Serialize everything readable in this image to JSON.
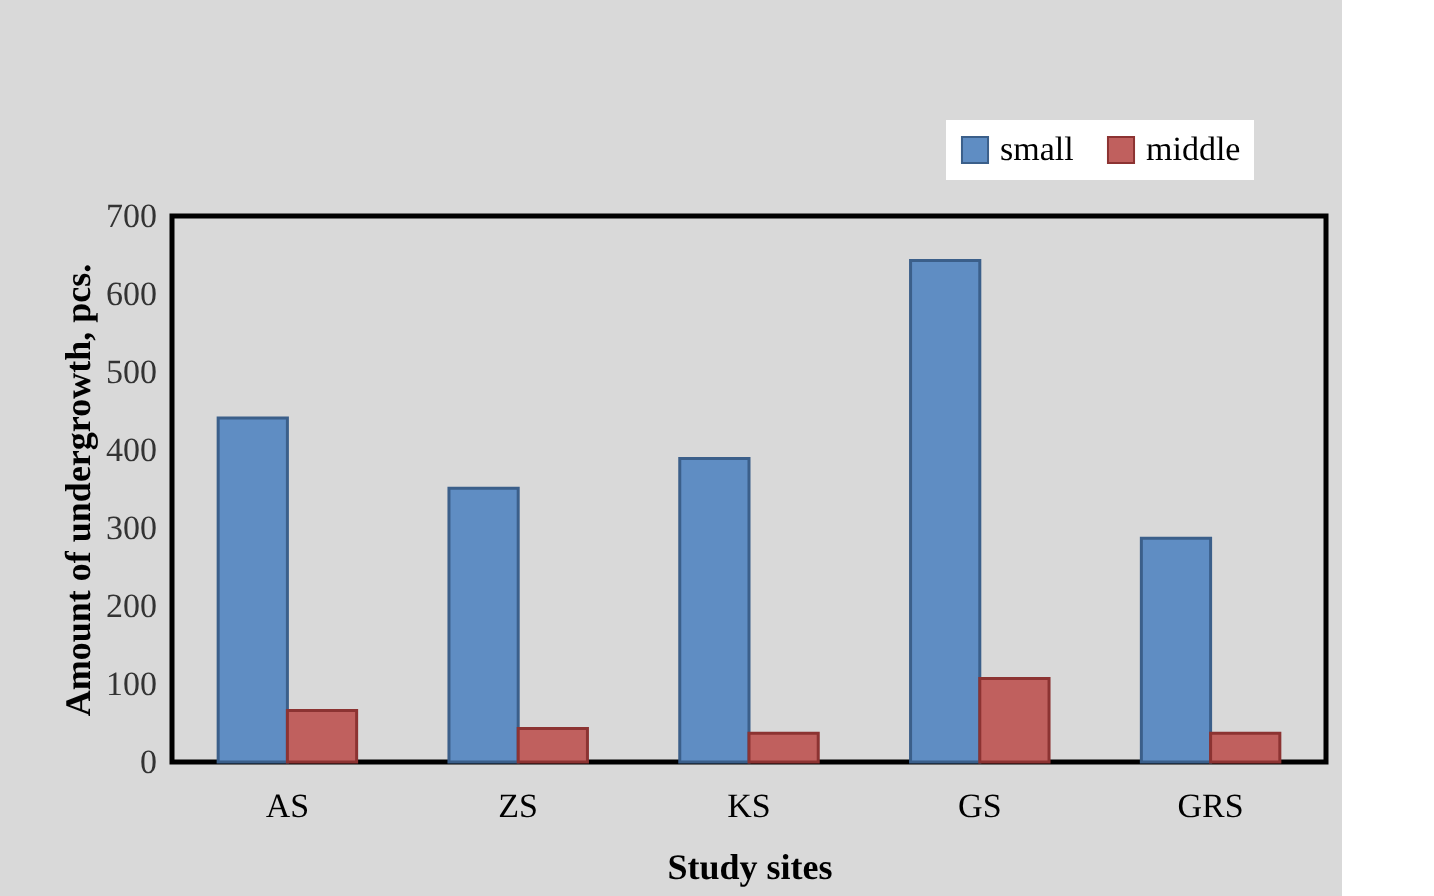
{
  "chart_data": {
    "type": "bar",
    "xlabel": "Study sites",
    "ylabel": "Amount of undergrowth, pcs.",
    "categories": [
      "AS",
      "ZS",
      "KS",
      "GS",
      "GRS"
    ],
    "series": [
      {
        "name": "small",
        "color": "#5f8dc3",
        "values": [
          441,
          351,
          389,
          643,
          287
        ]
      },
      {
        "name": "middle",
        "color": "#c0605e",
        "values": [
          66,
          43,
          37,
          107,
          37
        ]
      }
    ],
    "ylim": [
      0,
      700
    ],
    "yticks": [
      0,
      100,
      200,
      300,
      400,
      500,
      600,
      700
    ],
    "grid": false,
    "legend": "top right"
  }
}
